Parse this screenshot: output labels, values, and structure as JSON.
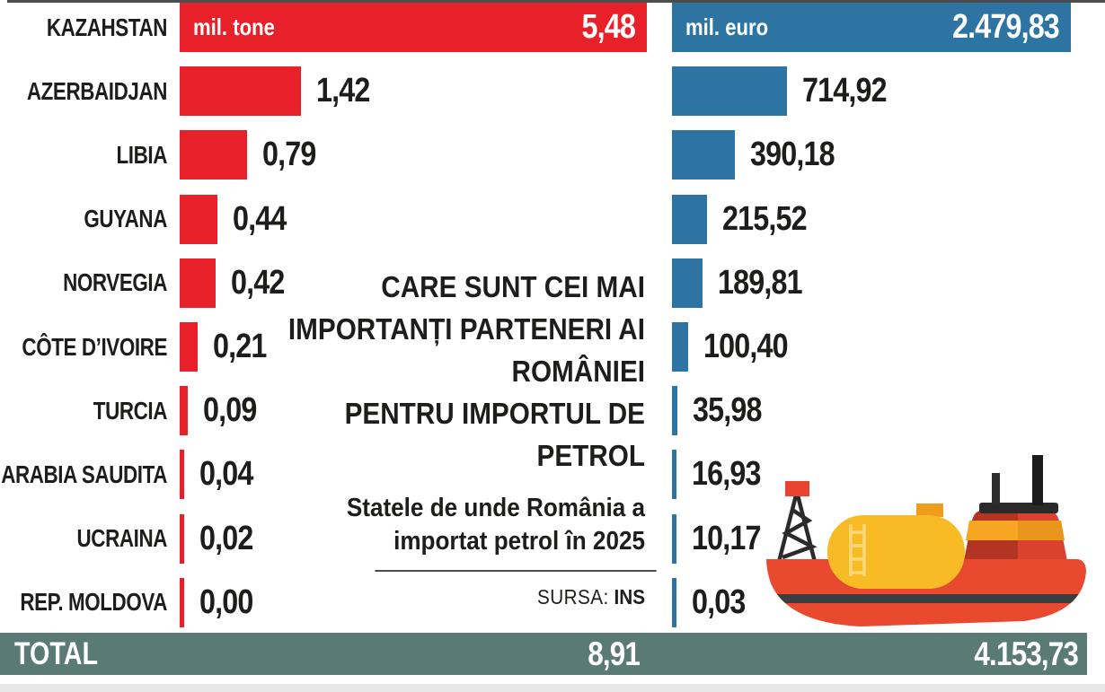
{
  "title_lines": [
    "CARE SUNT CEI MAI",
    "IMPORTANȚI PARTENERI AI",
    "ROMÂNIEI",
    "PENTRU IMPORTUL DE",
    "PETROL"
  ],
  "subtitle_lines": [
    "Statele de unde România a",
    "importat petrol în 2025"
  ],
  "meta": {
    "source_label": "SURSA:",
    "source_value": "INS"
  },
  "total": {
    "label": "TOTAL",
    "tone": "8,91",
    "euro": "4.153,73"
  },
  "chart_data": {
    "type": "bar",
    "orientation": "horizontal",
    "grid": false,
    "legend_position": "inside-first-bar",
    "categories": [
      "KAZAHSTAN",
      "AZERBAIDJAN",
      "LIBIA",
      "GUYANA",
      "NORVEGIA",
      "CÔTE D’IVOIRE",
      "TURCIA",
      "ARABIA SAUDITA",
      "UCRAINA",
      "REP. MOLDOVA"
    ],
    "series": [
      {
        "name": "mil. tone",
        "color": "#e8202a",
        "axis_max": 5.48,
        "values": [
          5.48,
          1.42,
          0.79,
          0.44,
          0.42,
          0.21,
          0.09,
          0.04,
          0.02,
          0.0
        ],
        "labels": [
          "5,48",
          "1,42",
          "0,79",
          "0,44",
          "0,42",
          "0,21",
          "0,09",
          "0,04",
          "0,02",
          "0,00"
        ],
        "total": 8.91,
        "total_label": "8,91"
      },
      {
        "name": "mil. euro",
        "color": "#2e74a2",
        "axis_max": 2479.83,
        "values": [
          2479.83,
          714.92,
          390.18,
          215.52,
          189.81,
          100.4,
          35.98,
          16.93,
          10.17,
          0.03
        ],
        "labels": [
          "2.479,83",
          "714,92",
          "390,18",
          "215,52",
          "189,81",
          "100,40",
          "35,98",
          "16,93",
          "10,17",
          "0,03"
        ],
        "total": 4153.73,
        "total_label": "4.153,73"
      }
    ]
  },
  "colors": {
    "red": "#e8202a",
    "blue": "#2e74a2",
    "teal": "#5a7a76",
    "text": "#1d1d1b",
    "rule": "#4d4d4d"
  },
  "illustration": {
    "name": "oil-tanker-ship"
  }
}
